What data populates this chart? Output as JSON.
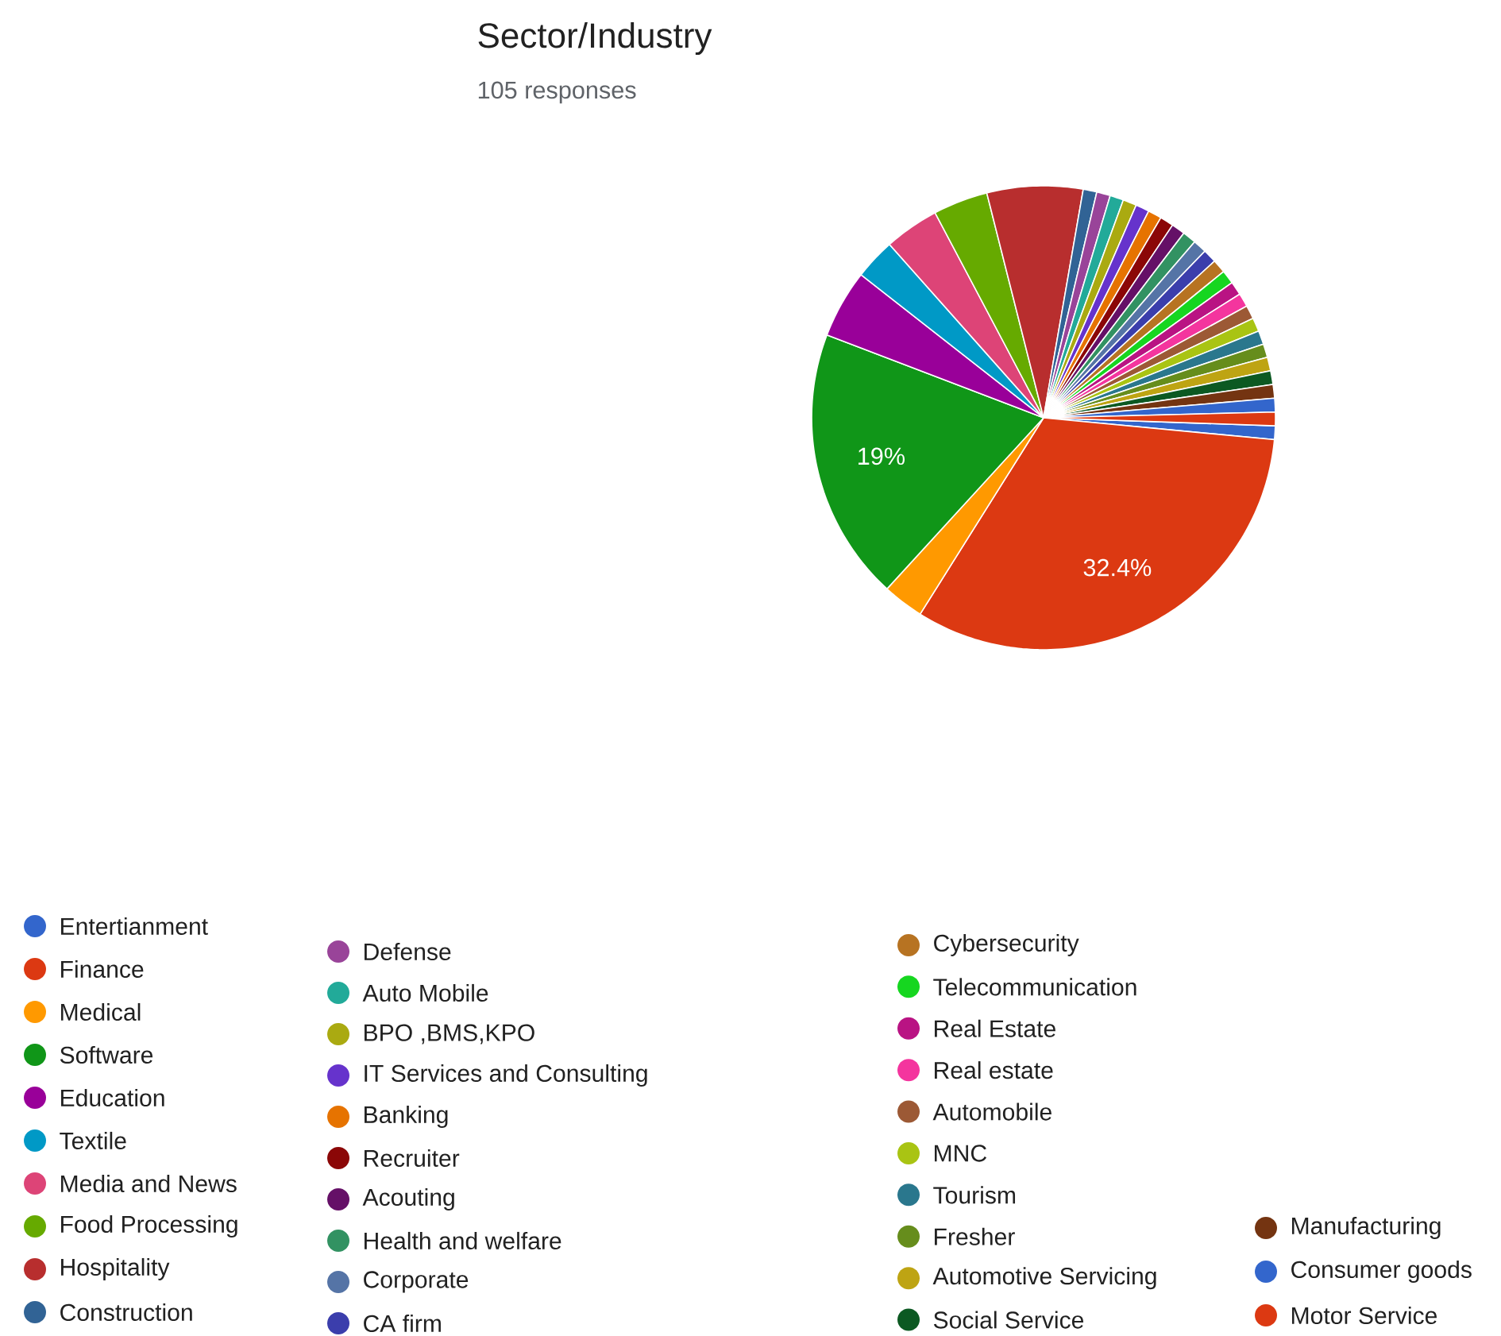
{
  "chart_data": {
    "type": "pie",
    "title": "Sector/Industry",
    "subtitle": "105 responses",
    "categories": [
      "Entertianment",
      "Finance",
      "Medical",
      "Software",
      "Education",
      "Textile",
      "Media and News",
      "Food Processing",
      "Hospitality",
      "Construction",
      "Defense",
      "Auto Mobile",
      "BPO ,BMS,KPO",
      "IT Services and Consulting",
      "Banking",
      "Recruiter",
      "Acouting",
      "Health and welfare",
      "Corporate",
      "CA firm",
      "Cybersecurity",
      "Telecommunication",
      "Real Estate",
      "Real estate",
      "Automobile",
      "MNC",
      "Tourism",
      "Fresher",
      "Automotive Servicing",
      "Social Service",
      "Manufacturing",
      "Consumer goods",
      "Motor Service"
    ],
    "values": [
      0.95,
      32.4,
      2.86,
      19.0,
      4.76,
      2.86,
      3.81,
      3.81,
      6.67,
      0.95,
      0.95,
      0.95,
      0.95,
      0.95,
      0.95,
      0.95,
      0.95,
      0.95,
      0.95,
      0.95,
      0.95,
      0.95,
      0.95,
      0.95,
      0.95,
      0.95,
      0.95,
      0.95,
      0.95,
      0.95,
      0.95,
      0.95,
      0.95
    ],
    "value_labels": [
      null,
      "32.4%",
      null,
      "19%",
      null,
      null,
      null,
      null,
      null,
      null,
      null,
      null,
      null,
      null,
      null,
      null,
      null,
      null,
      null,
      null,
      null,
      null,
      null,
      null,
      null,
      null,
      null,
      null,
      null,
      null,
      null,
      null,
      null
    ],
    "colors": [
      "#3366cc",
      "#dc3912",
      "#ff9900",
      "#109618",
      "#990099",
      "#0099c6",
      "#dd4477",
      "#66aa00",
      "#b82e2e",
      "#316395",
      "#994499",
      "#22aa99",
      "#aaaa11",
      "#6633cc",
      "#e67300",
      "#8b0707",
      "#651067",
      "#329262",
      "#5574a6",
      "#3b3eac",
      "#b77322",
      "#16d620",
      "#b91383",
      "#f4359e",
      "#9c5935",
      "#a9c413",
      "#2a778d",
      "#668d1c",
      "#bea413",
      "#0c5922",
      "#743411",
      "#3366cc",
      "#dc3912"
    ],
    "legend": "bottom"
  }
}
